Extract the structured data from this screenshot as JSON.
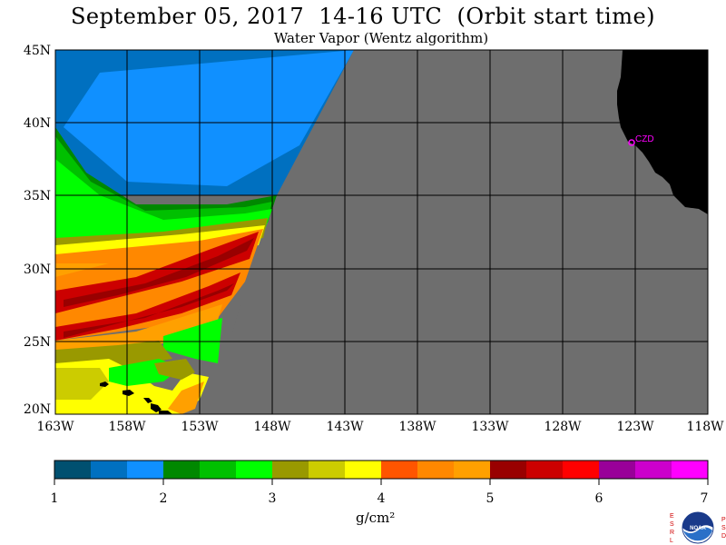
{
  "title": "September 05, 2017  14-16 UTC  (Orbit start time)",
  "subtitle": "Water Vapor (Wentz algorithm)",
  "map": {
    "lat_labels": [
      "45N",
      "40N",
      "35N",
      "30N",
      "25N",
      "20N"
    ],
    "lon_labels": [
      "163W",
      "158W",
      "153W",
      "148W",
      "143W",
      "138W",
      "133W",
      "128W",
      "123W",
      "118W"
    ],
    "station_label": "CZD",
    "colors": {
      "no_data": "#6e6e6e",
      "land": "#000000",
      "grid": "#000000",
      "station": "#ff00ff"
    }
  },
  "colorbar": {
    "colors": [
      "#005070",
      "#0070c0",
      "#1090ff",
      "#008800",
      "#00c000",
      "#00ff00",
      "#999900",
      "#cccc00",
      "#ffff00",
      "#ff5500",
      "#ff8800",
      "#ffa000",
      "#990000",
      "#cc0000",
      "#ff0000",
      "#990099",
      "#cc00cc",
      "#ff00ff"
    ],
    "tick_labels": [
      "1",
      "2",
      "3",
      "4",
      "5",
      "6",
      "7"
    ],
    "units": "g/cm²"
  },
  "logo": {
    "left_letters": "ESRL",
    "right_letters": "PSD",
    "text": "NOAA"
  }
}
